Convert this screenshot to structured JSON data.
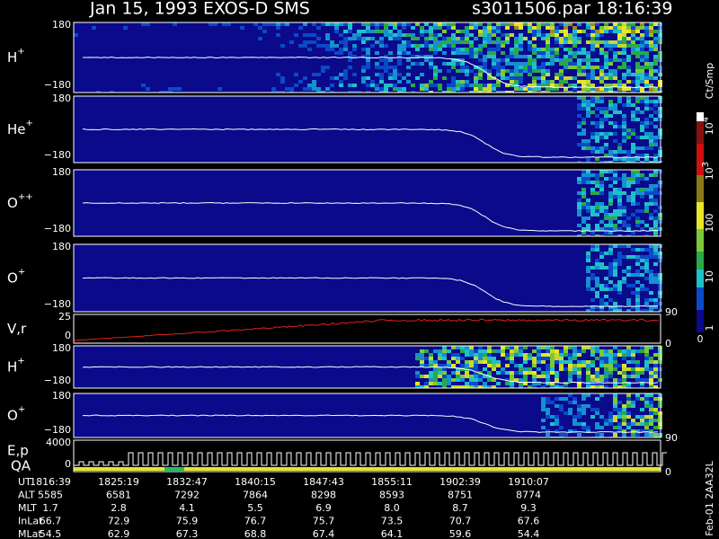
{
  "header": {
    "title": "Jan 15, 1993   EXOS-D SMS",
    "file": "s3011506.par  18:16:39"
  },
  "panels": [
    {
      "ion": "H",
      "charge": "+",
      "ticks": [
        "180",
        "−180"
      ]
    },
    {
      "ion": "He",
      "charge": "+",
      "ticks": [
        "180",
        "−180"
      ]
    },
    {
      "ion": "O",
      "charge": "++",
      "ticks": [
        "180",
        "−180"
      ]
    },
    {
      "ion": "O",
      "charge": "+",
      "ticks": [
        "180",
        "−180"
      ],
      "right": "90"
    },
    {
      "ion": "V,r",
      "charge": "",
      "ticks": [
        "25",
        "0"
      ],
      "right": "0"
    },
    {
      "ion": "H",
      "charge": "+",
      "ticks": [
        "180",
        "−180"
      ]
    },
    {
      "ion": "O",
      "charge": "+",
      "ticks": [
        "180",
        "−180"
      ],
      "right": "90"
    },
    {
      "ion": "E,p",
      "charge": "",
      "ticks": [
        "4000",
        "0"
      ],
      "right": "0"
    }
  ],
  "qa_label": "QA",
  "colorbar": {
    "title": "Ct/Smp",
    "ticks": [
      {
        "base": "10",
        "exp": "4"
      },
      {
        "base": "10",
        "exp": "3"
      },
      {
        "base": "100",
        "exp": ""
      },
      {
        "base": "10",
        "exp": ""
      },
      {
        "base": "1",
        "exp": ""
      }
    ],
    "zero": "0"
  },
  "footer": {
    "rows": [
      {
        "label": "UT",
        "values": [
          "1816:39",
          "1825:19",
          "1832:47",
          "1840:15",
          "1847:43",
          "1855:11",
          "1902:39",
          "1910:07"
        ]
      },
      {
        "label": "ALT",
        "values": [
          "5585",
          "6581",
          "7292",
          "7864",
          "8298",
          "8593",
          "8751",
          "8774"
        ]
      },
      {
        "label": "MLT",
        "values": [
          "1.7",
          "2.8",
          "4.1",
          "5.5",
          "6.9",
          "8.0",
          "8.7",
          "9.3"
        ]
      },
      {
        "label": "InLat",
        "values": [
          "66.7",
          "72.9",
          "75.9",
          "76.7",
          "75.7",
          "73.5",
          "70.7",
          "67.6"
        ]
      },
      {
        "label": "MLat",
        "values": [
          "54.5",
          "62.9",
          "67.3",
          "68.8",
          "67.4",
          "64.1",
          "59.6",
          "54.4"
        ]
      }
    ],
    "stamp": "Feb-01 2AA32L"
  }
}
